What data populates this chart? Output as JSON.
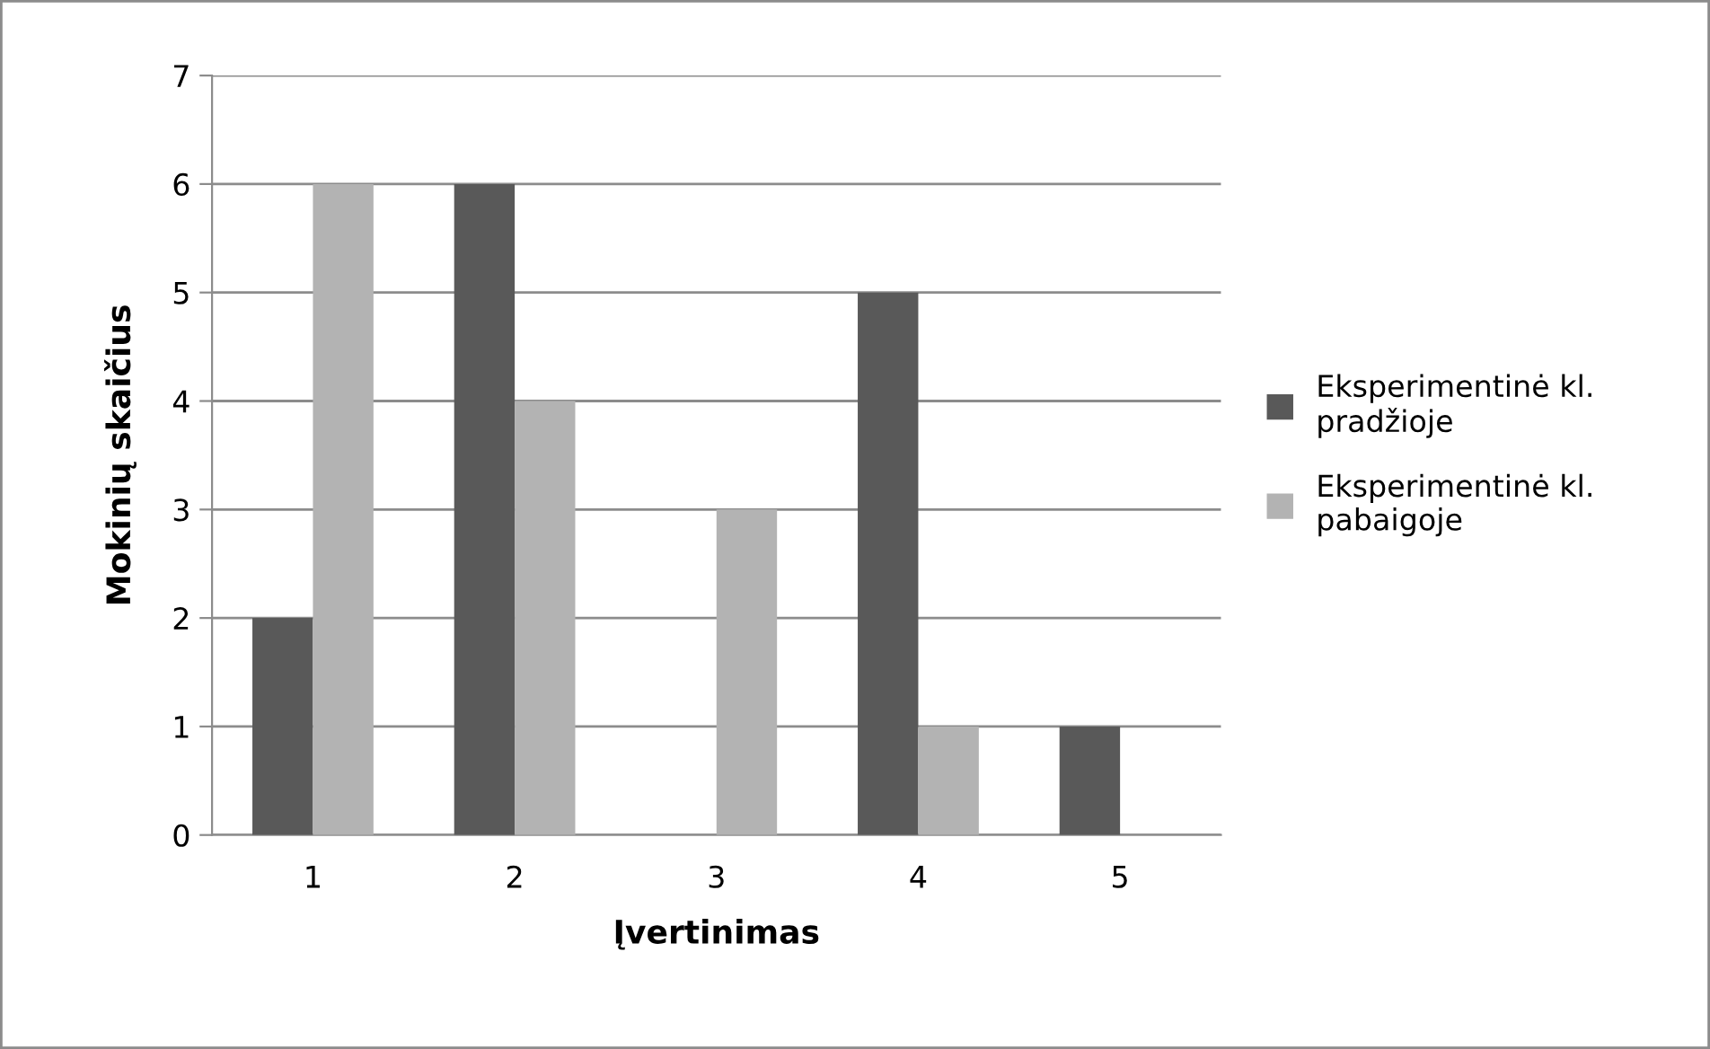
{
  "chart_data": {
    "type": "bar",
    "xlabel": "Įvertinimas",
    "ylabel": "Mokinių skaičius",
    "categories": [
      "1",
      "2",
      "3",
      "4",
      "5"
    ],
    "series": [
      {
        "name": "Eksperimentinė kl. pradžioje",
        "color": "#595959",
        "values": [
          2,
          6,
          0,
          5,
          1
        ]
      },
      {
        "name": "Eksperimentinė kl. pabaigoje",
        "color": "#b3b3b3",
        "values": [
          6,
          4,
          3,
          1,
          0
        ]
      }
    ],
    "ylim": [
      0,
      7
    ],
    "yticks": [
      0,
      1,
      2,
      3,
      4,
      5,
      6,
      7
    ],
    "grid": "y",
    "legend": "right"
  }
}
